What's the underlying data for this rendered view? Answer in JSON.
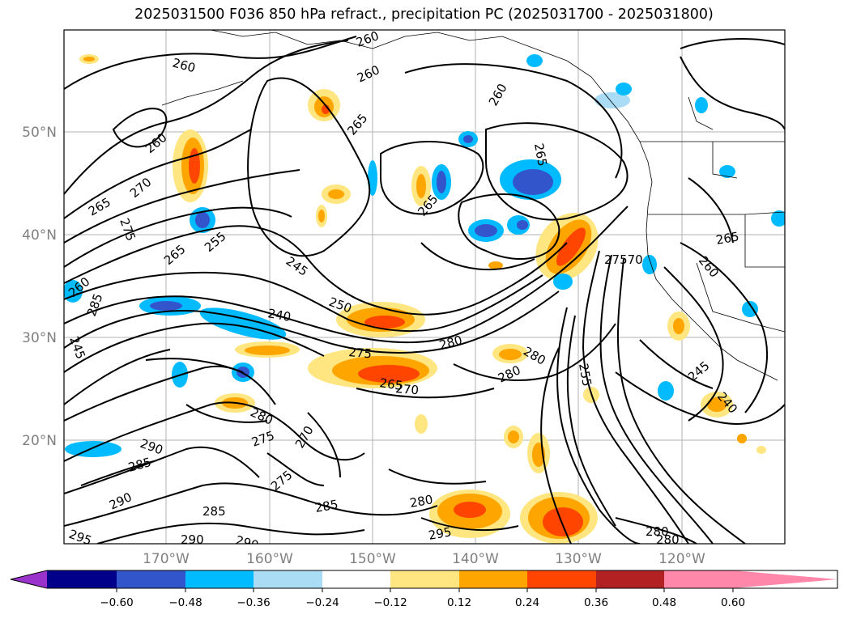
{
  "title": "2025031500 F036 850 hPa refract., precipitation PC (2025031700 - 2025031800)",
  "latitude_labels": [
    "50°N",
    "40°N",
    "30°N",
    "20°N"
  ],
  "longitude_labels": [
    "170°W",
    "160°W",
    "150°W",
    "140°W",
    "130°W",
    "120°W"
  ],
  "colorbar": {
    "ticks": [
      "−0.60",
      "−0.48",
      "−0.36",
      "−0.24",
      "−0.12",
      "0.12",
      "0.24",
      "0.36",
      "0.48",
      "0.60"
    ],
    "colors": [
      "#9933cc",
      "#00008b",
      "#3355cc",
      "#00bbff",
      "#aaddf5",
      "#ffffff",
      "#ffe680",
      "#ffa500",
      "#ff4500",
      "#b22222",
      "#ff88aa"
    ]
  },
  "contour_labels": [
    "260",
    "260",
    "260",
    "260",
    "265",
    "265",
    "260",
    "265",
    "270",
    "265",
    "275",
    "265",
    "255",
    "245",
    "240",
    "250",
    "275",
    "265",
    "270",
    "280",
    "280",
    "280",
    "27570",
    "265",
    "260",
    "245",
    "240",
    "255",
    "280",
    "275",
    "270",
    "290",
    "285",
    "275",
    "290",
    "285",
    "285",
    "280",
    "295",
    "280",
    "295",
    "290",
    "290",
    "260",
    "245",
    "285",
    "280"
  ]
}
